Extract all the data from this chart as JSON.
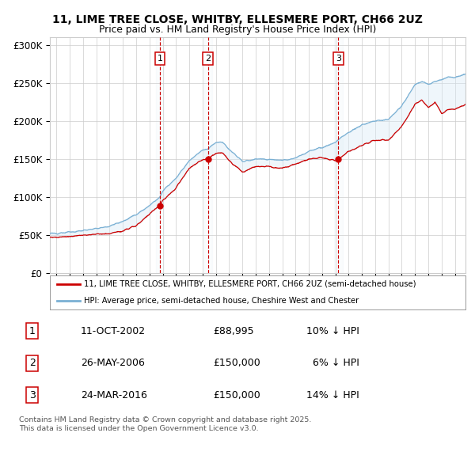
{
  "title_line1": "11, LIME TREE CLOSE, WHITBY, ELLESMERE PORT, CH66 2UZ",
  "title_line2": "Price paid vs. HM Land Registry's House Price Index (HPI)",
  "xlim_start": 1994.5,
  "xlim_end": 2025.8,
  "ylim": [
    0,
    310000
  ],
  "yticks": [
    0,
    50000,
    100000,
    150000,
    200000,
    250000,
    300000
  ],
  "ytick_labels": [
    "£0",
    "£50K",
    "£100K",
    "£150K",
    "£200K",
    "£250K",
    "£300K"
  ],
  "xticks": [
    1995,
    1996,
    1997,
    1998,
    1999,
    2000,
    2001,
    2002,
    2003,
    2004,
    2005,
    2006,
    2007,
    2008,
    2009,
    2010,
    2011,
    2012,
    2013,
    2014,
    2015,
    2016,
    2017,
    2018,
    2019,
    2020,
    2021,
    2022,
    2023,
    2024,
    2025
  ],
  "hpi_anchors_x": [
    1994.5,
    1995,
    1996,
    1997,
    1998,
    1999,
    2000,
    2001,
    2002,
    2002.78,
    2003,
    2004,
    2005,
    2006,
    2006.4,
    2007,
    2007.5,
    2008,
    2009,
    2010,
    2011,
    2012,
    2013,
    2014,
    2015,
    2016,
    2016.23,
    2017,
    2018,
    2019,
    2020,
    2021,
    2022,
    2022.5,
    2023,
    2023.5,
    2024,
    2024.5,
    2025,
    2025.8
  ],
  "hpi_anchors_y": [
    52000,
    52500,
    54000,
    56000,
    59000,
    62000,
    68000,
    77000,
    89000,
    100000,
    108000,
    125000,
    148000,
    162000,
    163000,
    172000,
    172000,
    163000,
    147000,
    150000,
    150000,
    148000,
    152000,
    160000,
    165000,
    172000,
    176000,
    185000,
    195000,
    200000,
    202000,
    220000,
    248000,
    252000,
    248000,
    252000,
    254000,
    258000,
    257000,
    262000
  ],
  "red_anchors_x": [
    1994.5,
    1995,
    1996,
    1997,
    1998,
    1999,
    2000,
    2001,
    2002,
    2002.78,
    2003,
    2004,
    2005,
    2006,
    2006.4,
    2007,
    2007.5,
    2008,
    2009,
    2010,
    2011,
    2012,
    2013,
    2014,
    2015,
    2016,
    2016.23,
    2017,
    2018,
    2019,
    2020,
    2021,
    2022,
    2022.5,
    2023,
    2023.5,
    2024,
    2024.5,
    2025,
    2025.8
  ],
  "red_anchors_y": [
    47000,
    47500,
    48500,
    50000,
    51000,
    52000,
    56000,
    62000,
    78000,
    89000,
    96000,
    112000,
    138000,
    149000,
    150000,
    158000,
    158000,
    148000,
    133000,
    140000,
    140000,
    138000,
    143000,
    150000,
    152000,
    148000,
    150000,
    160000,
    168000,
    175000,
    175000,
    193000,
    222000,
    228000,
    218000,
    225000,
    210000,
    215000,
    215000,
    222000
  ],
  "sale_dates": [
    2002.78,
    2006.4,
    2016.23
  ],
  "sale_prices": [
    88995,
    150000,
    150000
  ],
  "sale_labels": [
    "1",
    "2",
    "3"
  ],
  "legend_red_label": "11, LIME TREE CLOSE, WHITBY, ELLESMERE PORT, CH66 2UZ (semi-detached house)",
  "legend_blue_label": "HPI: Average price, semi-detached house, Cheshire West and Chester",
  "table_rows": [
    {
      "num": "1",
      "date": "11-OCT-2002",
      "price": "£88,995",
      "note": "10% ↓ HPI"
    },
    {
      "num": "2",
      "date": "26-MAY-2006",
      "price": "£150,000",
      "note": "  6% ↓ HPI"
    },
    {
      "num": "3",
      "date": "24-MAR-2016",
      "price": "£150,000",
      "note": "14% ↓ HPI"
    }
  ],
  "footer": "Contains HM Land Registry data © Crown copyright and database right 2025.\nThis data is licensed under the Open Government Licence v3.0.",
  "red_color": "#cc0000",
  "blue_color": "#7ab0d4",
  "shade_color": "#d8eaf5",
  "grid_color": "#cccccc",
  "bg": "#ffffff"
}
